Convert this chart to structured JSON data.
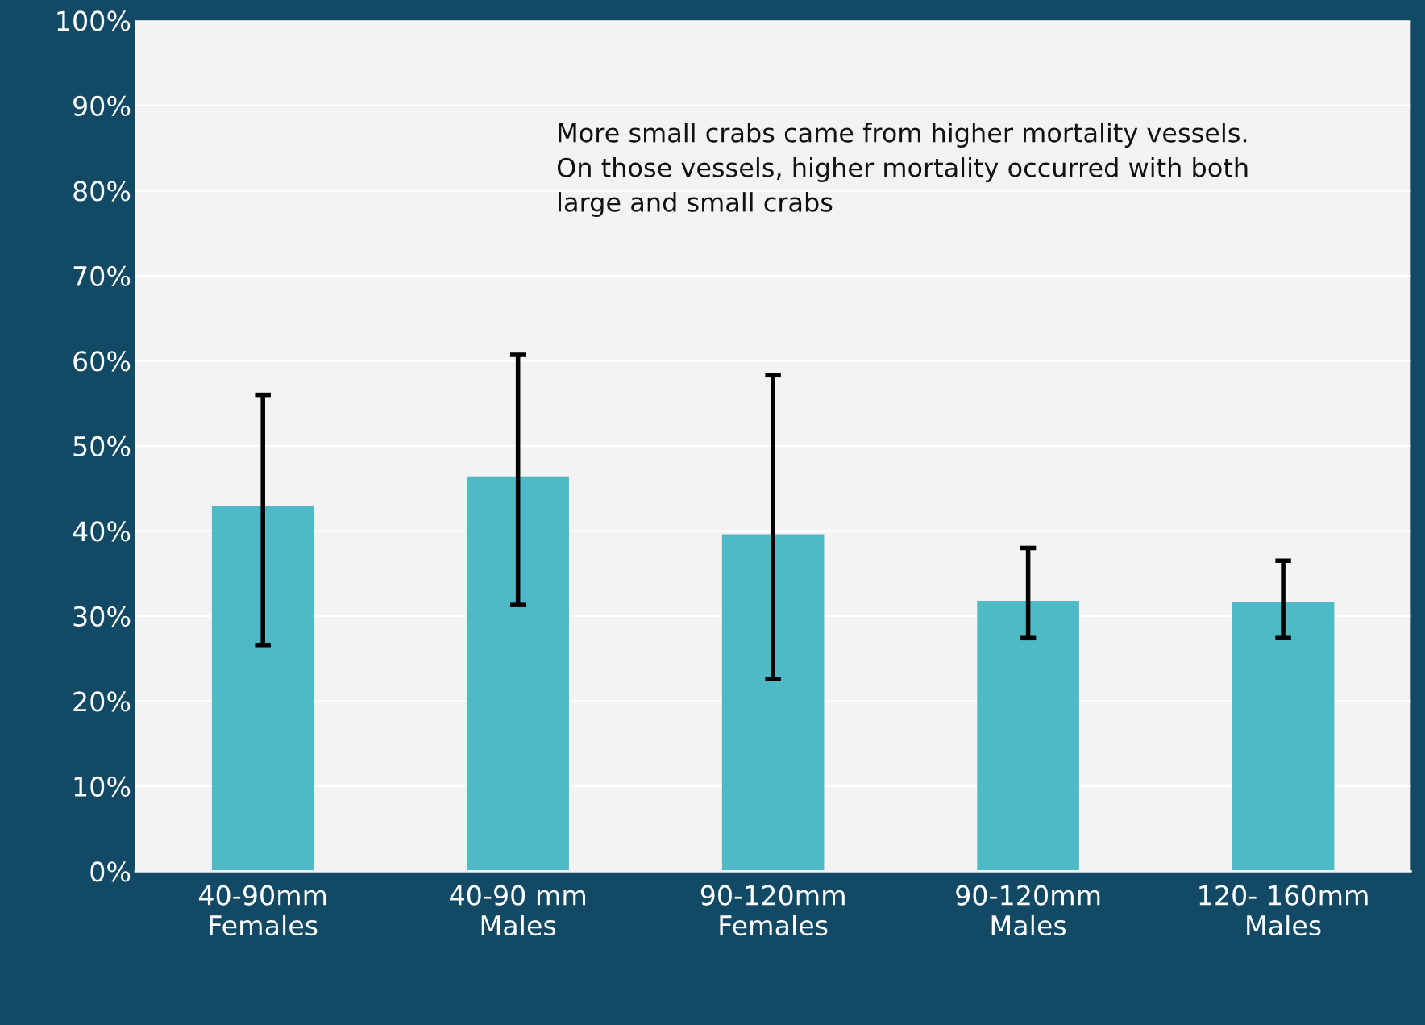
{
  "chart_data": {
    "type": "bar",
    "categories": [
      "40-90mm\nFemales",
      "40-90 mm\nMales",
      "90-120mm\nFemales",
      "90-120mm\nMales",
      "120- 160mm\nMales"
    ],
    "values": [
      42.9,
      46.4,
      39.6,
      31.8,
      31.7
    ],
    "errors": [
      [
        26.6,
        56.0
      ],
      [
        31.3,
        60.7
      ],
      [
        22.6,
        58.3
      ],
      [
        27.4,
        38.0
      ],
      [
        27.4,
        36.5
      ]
    ],
    "color": "#4dbac6",
    "ylim": [
      0,
      100
    ],
    "yticks": [
      {
        "value": 0,
        "label": "0%"
      },
      {
        "value": 10,
        "label": "10%"
      },
      {
        "value": 20,
        "label": "20%"
      },
      {
        "value": 30,
        "label": "30%"
      },
      {
        "value": 40,
        "label": "40%"
      },
      {
        "value": 50,
        "label": "50%"
      },
      {
        "value": 60,
        "label": "60%"
      },
      {
        "value": 70,
        "label": "70%"
      },
      {
        "value": 80,
        "label": "80%"
      },
      {
        "value": 90,
        "label": "90%"
      },
      {
        "value": 100,
        "label": "100%"
      }
    ],
    "grid": "y",
    "annotations": [
      "More small crabs came from higher mortality vessels.\nOn those vessels, higher mortality occurred with both\nlarge and small crabs"
    ]
  }
}
